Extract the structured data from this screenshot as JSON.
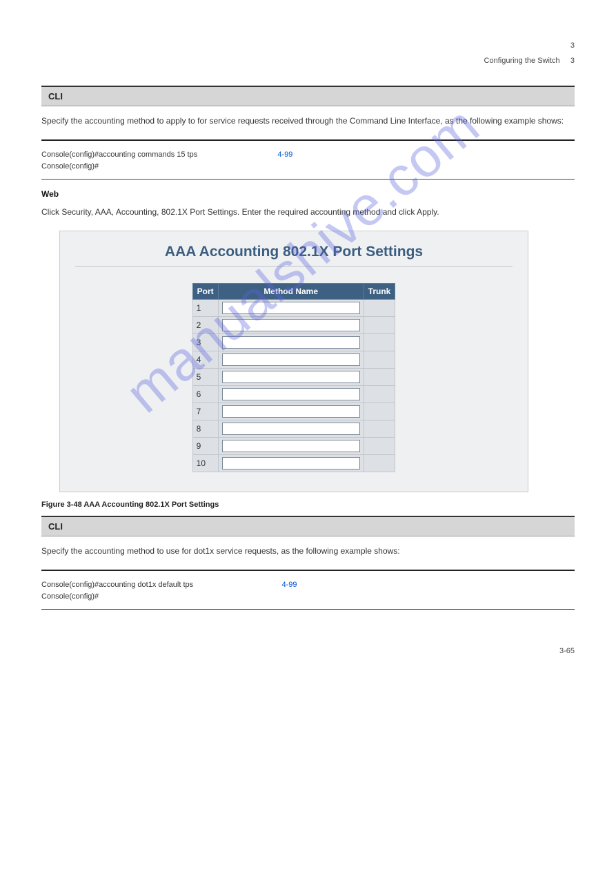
{
  "header": {
    "page_number": "3",
    "chapter": "Configuring the Switch",
    "section_number": "3"
  },
  "section_cli": {
    "bar_title": "CLI",
    "text": "Specify the accounting method to apply to for service requests received through the Command Line Interface, as the following example shows:",
    "rule_color_top": "#222222",
    "rule_color_bottom": "#444444",
    "line1_prefix": "Console(config)#accounting commands 15 tps",
    "line1_page_ref": "4-99",
    "line2": "Console(config)#"
  },
  "figure": {
    "caption": "Figure 3-48 AAA Accounting 802.1X Port Settings",
    "panel_title": "AAA Accounting 802.1X Port Settings",
    "panel_bg": "#eef0f2",
    "panel_border": "#c8cbce",
    "title_color": "#3b5d7f",
    "table": {
      "header_bg": "#3e6183",
      "header_fg": "#ffffff",
      "cell_bg": "#dde1e5",
      "cell_border": "#c2c6ca",
      "columns": [
        "Port",
        "Method Name",
        "Trunk"
      ],
      "rows": [
        {
          "port": "1",
          "method": "",
          "trunk": ""
        },
        {
          "port": "2",
          "method": "",
          "trunk": ""
        },
        {
          "port": "3",
          "method": "",
          "trunk": ""
        },
        {
          "port": "4",
          "method": "",
          "trunk": ""
        },
        {
          "port": "5",
          "method": "",
          "trunk": ""
        },
        {
          "port": "6",
          "method": "",
          "trunk": ""
        },
        {
          "port": "7",
          "method": "",
          "trunk": ""
        },
        {
          "port": "8",
          "method": "",
          "trunk": ""
        },
        {
          "port": "9",
          "method": "",
          "trunk": ""
        },
        {
          "port": "10",
          "method": "",
          "trunk": ""
        }
      ]
    }
  },
  "section_web": {
    "subhead": "Web",
    "text": "Click Security, AAA, Accounting, 802.1X Port Settings. Enter the required accounting method and click Apply."
  },
  "section_cli2": {
    "bar_title": "CLI",
    "text": "Specify the accounting method to use for dot1x service requests, as the following example shows:",
    "line1_prefix": "Console(config)#accounting dot1x default tps",
    "line1_page_ref": "4-99",
    "line2": "Console(config)#"
  },
  "footer": {
    "page_number": "3-65"
  },
  "watermark": {
    "text": "manualshive.com",
    "color": "rgba(88,96,220,0.35)"
  }
}
